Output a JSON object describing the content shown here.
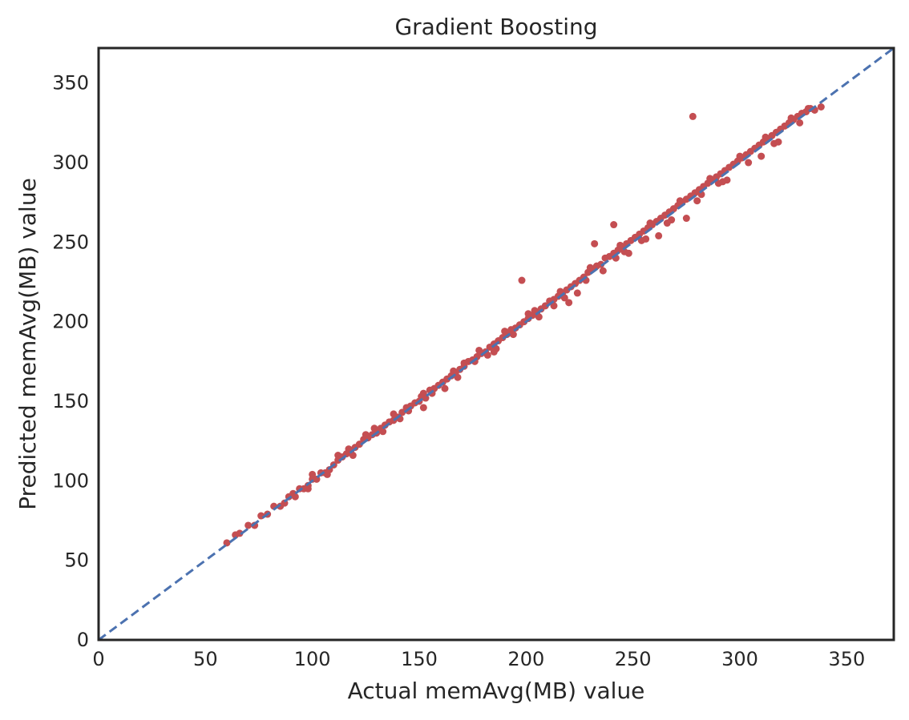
{
  "chart_data": {
    "type": "scatter",
    "title": "Gradient Boosting",
    "xlabel": "Actual memAvg(MB) value",
    "ylabel": "Predicted memAvg(MB) value",
    "xlim": [
      0,
      372
    ],
    "ylim": [
      0,
      372
    ],
    "xticks": [
      0,
      50,
      100,
      150,
      200,
      250,
      300,
      350
    ],
    "yticks": [
      0,
      50,
      100,
      150,
      200,
      250,
      300,
      350
    ],
    "grid": false,
    "colors": {
      "points": "#c44e52",
      "reference_line": "#4c72b0",
      "frame": "#262626"
    },
    "reference_line": {
      "style": "dashed",
      "from": [
        0,
        0
      ],
      "to": [
        372,
        372
      ]
    },
    "series": [
      {
        "points": [
          [
            60,
            61
          ],
          [
            64,
            66
          ],
          [
            66,
            67
          ],
          [
            70,
            72
          ],
          [
            73,
            72
          ],
          [
            76,
            78
          ],
          [
            79,
            79
          ],
          [
            82,
            84
          ],
          [
            85,
            84
          ],
          [
            87,
            86
          ],
          [
            89,
            90
          ],
          [
            92,
            90
          ],
          [
            94,
            95
          ],
          [
            96,
            95
          ],
          [
            98,
            97
          ],
          [
            100,
            101
          ],
          [
            102,
            101
          ],
          [
            104,
            105
          ],
          [
            106,
            105
          ],
          [
            108,
            107
          ],
          [
            110,
            110
          ],
          [
            112,
            113
          ],
          [
            114,
            115
          ],
          [
            116,
            117
          ],
          [
            118,
            119
          ],
          [
            120,
            121
          ],
          [
            122,
            123
          ],
          [
            124,
            126
          ],
          [
            126,
            127
          ],
          [
            128,
            129
          ],
          [
            130,
            130
          ],
          [
            132,
            133
          ],
          [
            134,
            135
          ],
          [
            136,
            137
          ],
          [
            138,
            138
          ],
          [
            140,
            140
          ],
          [
            142,
            143
          ],
          [
            144,
            146
          ],
          [
            146,
            147
          ],
          [
            148,
            149
          ],
          [
            150,
            150
          ],
          [
            151,
            153
          ],
          [
            153,
            152
          ],
          [
            155,
            157
          ],
          [
            157,
            158
          ],
          [
            159,
            160
          ],
          [
            161,
            162
          ],
          [
            163,
            164
          ],
          [
            165,
            166
          ],
          [
            167,
            168
          ],
          [
            169,
            170
          ],
          [
            171,
            172
          ],
          [
            173,
            175
          ],
          [
            175,
            176
          ],
          [
            177,
            178
          ],
          [
            179,
            180
          ],
          [
            181,
            181
          ],
          [
            183,
            184
          ],
          [
            185,
            186
          ],
          [
            187,
            188
          ],
          [
            189,
            190
          ],
          [
            191,
            192
          ],
          [
            193,
            195
          ],
          [
            195,
            196
          ],
          [
            197,
            198
          ],
          [
            199,
            200
          ],
          [
            201,
            202
          ],
          [
            203,
            204
          ],
          [
            205,
            206
          ],
          [
            207,
            208
          ],
          [
            209,
            210
          ],
          [
            211,
            213
          ],
          [
            213,
            214
          ],
          [
            215,
            216
          ],
          [
            217,
            218
          ],
          [
            219,
            220
          ],
          [
            221,
            222
          ],
          [
            223,
            224
          ],
          [
            225,
            226
          ],
          [
            227,
            228
          ],
          [
            229,
            231
          ],
          [
            231,
            233
          ],
          [
            233,
            235
          ],
          [
            235,
            236
          ],
          [
            237,
            240
          ],
          [
            239,
            241
          ],
          [
            241,
            243
          ],
          [
            243,
            245
          ],
          [
            245,
            247
          ],
          [
            247,
            249
          ],
          [
            249,
            251
          ],
          [
            251,
            253
          ],
          [
            253,
            255
          ],
          [
            255,
            257
          ],
          [
            257,
            259
          ],
          [
            259,
            261
          ],
          [
            261,
            263
          ],
          [
            263,
            265
          ],
          [
            265,
            267
          ],
          [
            267,
            269
          ],
          [
            269,
            271
          ],
          [
            271,
            273
          ],
          [
            273,
            275
          ],
          [
            275,
            277
          ],
          [
            277,
            279
          ],
          [
            279,
            281
          ],
          [
            281,
            283
          ],
          [
            283,
            285
          ],
          [
            285,
            287
          ],
          [
            287,
            289
          ],
          [
            289,
            291
          ],
          [
            291,
            293
          ],
          [
            293,
            295
          ],
          [
            295,
            297
          ],
          [
            297,
            299
          ],
          [
            299,
            301
          ],
          [
            301,
            303
          ],
          [
            303,
            305
          ],
          [
            305,
            307
          ],
          [
            307,
            309
          ],
          [
            309,
            311
          ],
          [
            311,
            313
          ],
          [
            313,
            315
          ],
          [
            315,
            317
          ],
          [
            317,
            319
          ],
          [
            319,
            321
          ],
          [
            321,
            323
          ],
          [
            323,
            325
          ],
          [
            325,
            327
          ],
          [
            327,
            329
          ],
          [
            329,
            331
          ],
          [
            331,
            332
          ],
          [
            333,
            334
          ],
          [
            335,
            333
          ],
          [
            338,
            335
          ],
          [
            98,
            95
          ],
          [
            107,
            104
          ],
          [
            119,
            116
          ],
          [
            133,
            131
          ],
          [
            145,
            144
          ],
          [
            156,
            155
          ],
          [
            168,
            165
          ],
          [
            182,
            179
          ],
          [
            194,
            192
          ],
          [
            206,
            203
          ],
          [
            218,
            215
          ],
          [
            228,
            226
          ],
          [
            242,
            240
          ],
          [
            254,
            251
          ],
          [
            266,
            262
          ],
          [
            280,
            276
          ],
          [
            292,
            288
          ],
          [
            304,
            300
          ],
          [
            316,
            312
          ],
          [
            328,
            325
          ],
          [
            100,
            104
          ],
          [
            112,
            116
          ],
          [
            125,
            129
          ],
          [
            138,
            142
          ],
          [
            152,
            155
          ],
          [
            166,
            169
          ],
          [
            178,
            182
          ],
          [
            190,
            194
          ],
          [
            204,
            207
          ],
          [
            216,
            219
          ],
          [
            230,
            234
          ],
          [
            244,
            248
          ],
          [
            258,
            262
          ],
          [
            272,
            276
          ],
          [
            286,
            290
          ],
          [
            300,
            304
          ],
          [
            312,
            316
          ],
          [
            324,
            328
          ],
          [
            332,
            334
          ],
          [
            278,
            329
          ],
          [
            232,
            249
          ],
          [
            241,
            261
          ],
          [
            198,
            226
          ],
          [
            275,
            265
          ],
          [
            290,
            287
          ],
          [
            262,
            254
          ],
          [
            224,
            218
          ],
          [
            248,
            243
          ],
          [
            310,
            304
          ],
          [
            152,
            146
          ],
          [
            162,
            158
          ],
          [
            176,
            175
          ],
          [
            186,
            183
          ],
          [
            220,
            212
          ],
          [
            236,
            232
          ],
          [
            256,
            252
          ],
          [
            268,
            264
          ],
          [
            294,
            289
          ],
          [
            318,
            313
          ],
          [
            91,
            92
          ],
          [
            117,
            120
          ],
          [
            129,
            133
          ],
          [
            141,
            139
          ],
          [
            171,
            174
          ],
          [
            185,
            181
          ],
          [
            201,
            205
          ],
          [
            213,
            210
          ],
          [
            246,
            244
          ],
          [
            282,
            280
          ]
        ]
      }
    ]
  }
}
